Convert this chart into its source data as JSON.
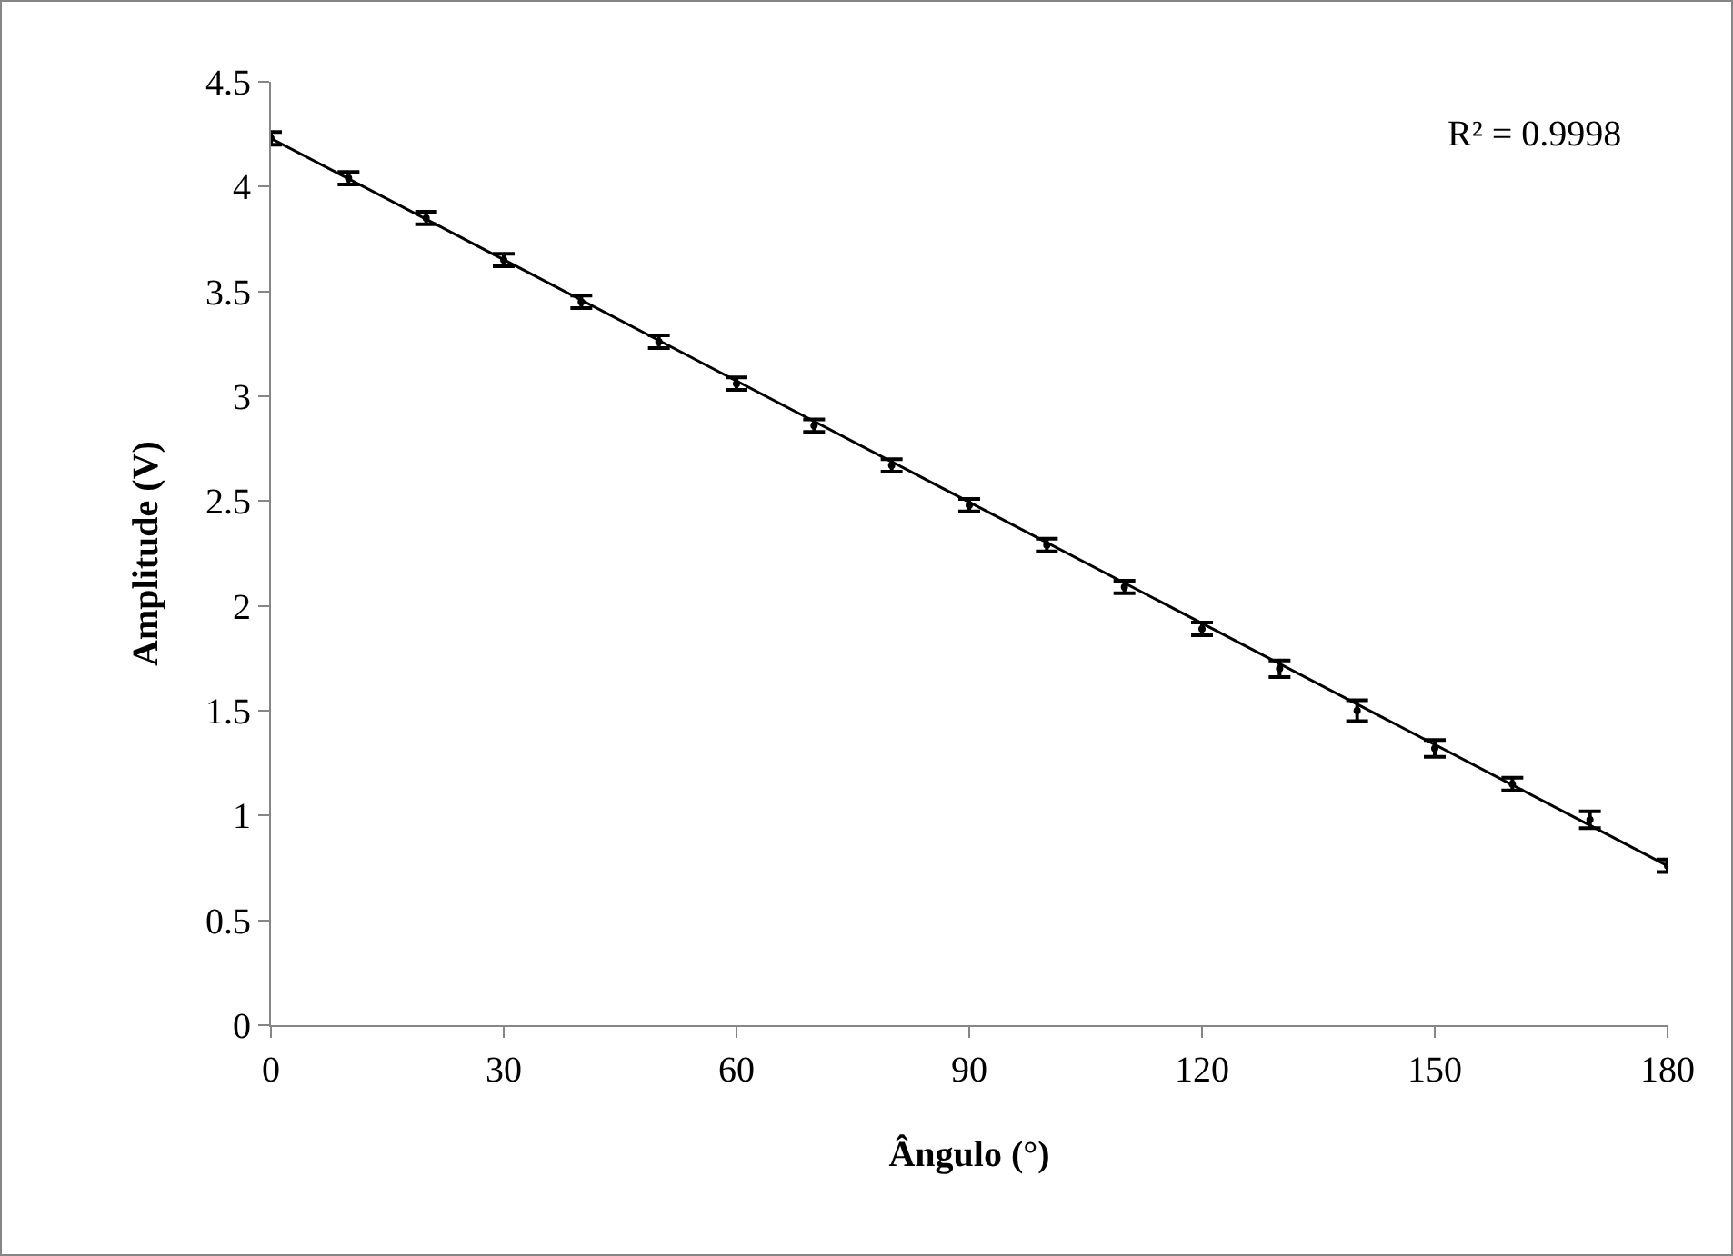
{
  "chart_data": {
    "type": "scatter",
    "xlabel": "Ângulo (°)",
    "ylabel": "Amplitude (V)",
    "x": [
      0,
      10,
      20,
      30,
      40,
      50,
      60,
      70,
      80,
      90,
      100,
      110,
      120,
      130,
      140,
      150,
      160,
      170,
      180
    ],
    "series": [
      {
        "color": "#000000",
        "values": [
          4.23,
          4.04,
          3.85,
          3.65,
          3.45,
          3.26,
          3.06,
          2.86,
          2.67,
          2.48,
          2.29,
          2.09,
          1.89,
          1.7,
          1.5,
          1.32,
          1.15,
          0.98,
          0.76
        ],
        "errors": [
          0.03,
          0.03,
          0.03,
          0.03,
          0.03,
          0.03,
          0.03,
          0.03,
          0.03,
          0.03,
          0.03,
          0.03,
          0.03,
          0.04,
          0.05,
          0.04,
          0.03,
          0.04,
          0.03
        ]
      },
      {
        "type": "line",
        "color": "#000000",
        "x": [
          0,
          180
        ],
        "values": [
          4.23,
          0.76
        ]
      }
    ],
    "annotations": [
      "R² = 0.9998"
    ],
    "xlim": [
      0,
      180
    ],
    "xticks": [
      0,
      30,
      60,
      90,
      120,
      150,
      180
    ],
    "ylim": [
      0,
      4.5
    ],
    "yticks": [
      0,
      0.5,
      1,
      1.5,
      2,
      2.5,
      3,
      3.5,
      4,
      4.5
    ],
    "grid": false,
    "legend": false
  }
}
